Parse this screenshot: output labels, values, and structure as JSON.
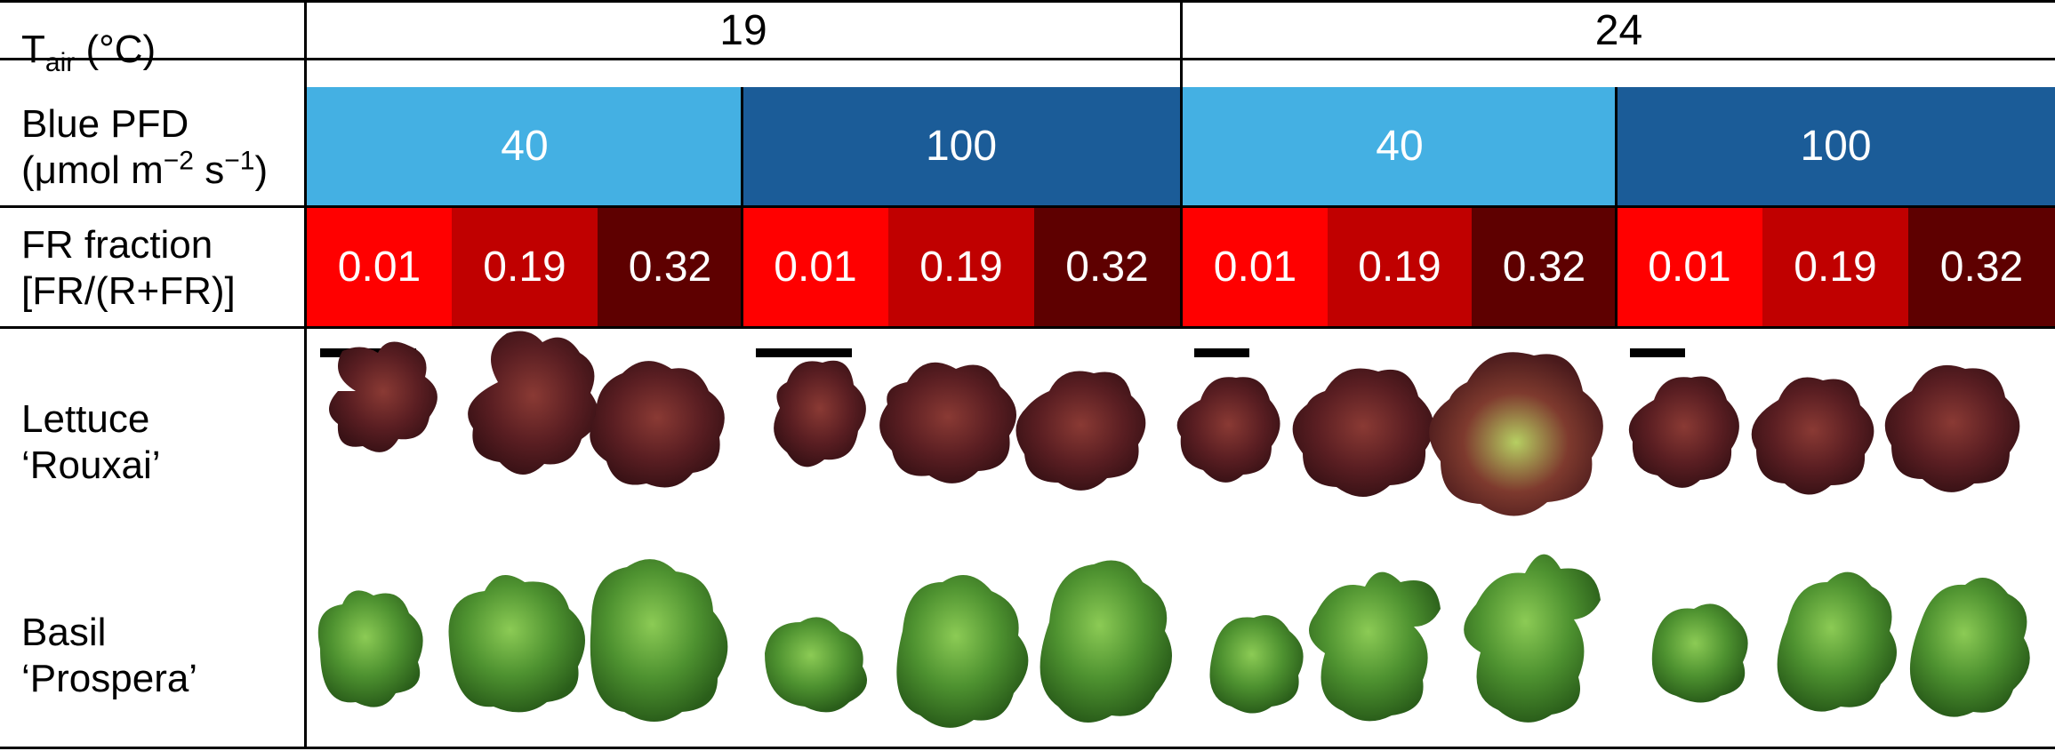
{
  "row_labels": {
    "tair_main": "T",
    "tair_sub": "air",
    "tair_unit": " (°C)",
    "blue_line1": "Blue PFD",
    "blue_line2_pre": "(μmol m",
    "blue_sup1": "−2",
    "blue_mid": " s",
    "blue_sup2": "−1",
    "blue_end": ")",
    "fr_line1": "FR fraction",
    "fr_line2": "[FR/(R+FR)]",
    "lettuce_line1": "Lettuce",
    "lettuce_line2": "‘Rouxai’",
    "basil_line1": "Basil",
    "basil_line2": "‘Prospera’"
  },
  "temperatures": [
    "19",
    "24"
  ],
  "blue_pfd": [
    "40",
    "100",
    "40",
    "100"
  ],
  "fr_fractions": [
    "0.01",
    "0.19",
    "0.32",
    "0.01",
    "0.19",
    "0.32",
    "0.01",
    "0.19",
    "0.32",
    "0.01",
    "0.19",
    "0.32"
  ],
  "colors": {
    "blue_light": "#44B0E3",
    "blue_dark": "#1B5C98",
    "fr_001": "#FF0000",
    "fr_019": "#C00000",
    "fr_032": "#5E0000",
    "lettuce_dark": "#5A1E22",
    "lettuce_mid": "#7C2E2E",
    "lettuce_green": "#8DAF45",
    "basil_dark": "#2F6B1E",
    "basil_mid": "#4E9230",
    "basil_light": "#7DBF4A"
  }
}
